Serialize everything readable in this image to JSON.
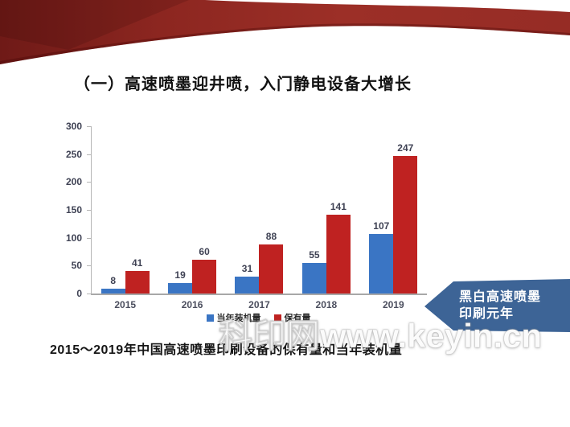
{
  "slide": {
    "title": "（一）高速喷墨迎井喷，入门静电设备大增长",
    "caption": "2015～2019年中国高速喷墨印刷设备的保有量和当年装机量",
    "watermark": "科印网www.keyin.cn",
    "banner_color": "#8c2620"
  },
  "callout": {
    "line1": "黑白高速喷墨",
    "line2": "印刷元年",
    "color": "#3d6496"
  },
  "chart_data": {
    "type": "bar",
    "title": "",
    "xlabel": "",
    "ylabel": "",
    "categories": [
      "2015",
      "2016",
      "2017",
      "2018",
      "2019"
    ],
    "series": [
      {
        "name": "当年装机量",
        "color": "#3a75c4",
        "values": [
          8,
          19,
          31,
          55,
          107
        ]
      },
      {
        "name": "保有量",
        "color": "#bf2221",
        "values": [
          41,
          60,
          88,
          141,
          247
        ]
      }
    ],
    "ylim": [
      0,
      300
    ],
    "yticks": [
      0,
      50,
      100,
      150,
      200,
      250,
      300
    ],
    "grid": false,
    "legend_position": "bottom",
    "value_labels": true,
    "label_color": "#3f4254"
  }
}
